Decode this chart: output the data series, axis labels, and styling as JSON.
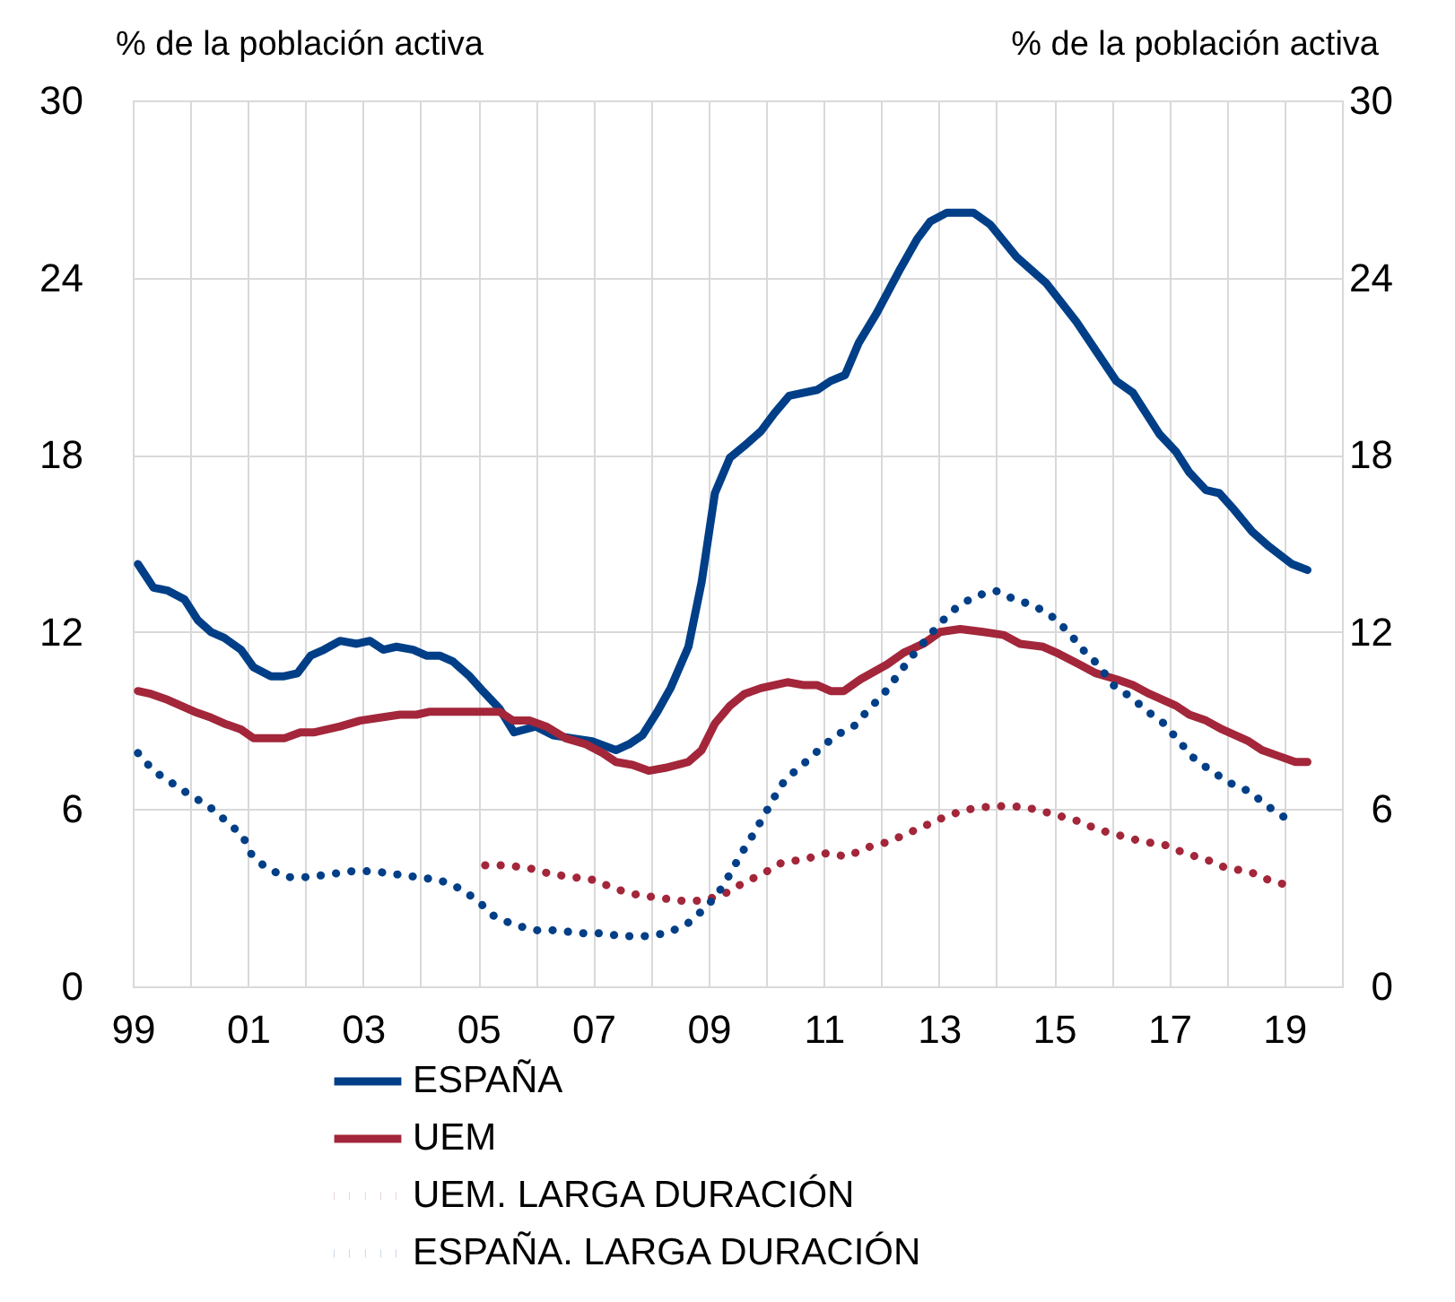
{
  "chart_data": {
    "type": "line",
    "ylabel": "% de la población activa",
    "y2label": "% de la población activa",
    "xlim": [
      1999,
      2020
    ],
    "xticks": [
      {
        "value": 1999,
        "label": "99"
      },
      {
        "value": 2000,
        "label": null
      },
      {
        "value": 2001,
        "label": "01"
      },
      {
        "value": 2002,
        "label": null
      },
      {
        "value": 2003,
        "label": "03"
      },
      {
        "value": 2004,
        "label": null
      },
      {
        "value": 2005,
        "label": "05"
      },
      {
        "value": 2006,
        "label": null
      },
      {
        "value": 2007,
        "label": "07"
      },
      {
        "value": 2008,
        "label": null
      },
      {
        "value": 2009,
        "label": "09"
      },
      {
        "value": 2010,
        "label": null
      },
      {
        "value": 2011,
        "label": "11"
      },
      {
        "value": 2012,
        "label": null
      },
      {
        "value": 2013,
        "label": "13"
      },
      {
        "value": 2014,
        "label": null
      },
      {
        "value": 2015,
        "label": "15"
      },
      {
        "value": 2016,
        "label": null
      },
      {
        "value": 2017,
        "label": "17"
      },
      {
        "value": 2018,
        "label": null
      },
      {
        "value": 2019,
        "label": "19"
      },
      {
        "value": 2020,
        "label": null
      }
    ],
    "ylim": [
      0,
      30
    ],
    "yticks": [
      0,
      6,
      12,
      18,
      24,
      30
    ],
    "y2lim": [
      0,
      30
    ],
    "y2ticks": [
      0,
      6,
      12,
      18,
      24,
      30
    ],
    "grid": true,
    "legend": "bottom",
    "series": [
      {
        "name": "ESPAÑA",
        "color": "#003f87",
        "line_style": "solid",
        "x": [
          1999.09,
          1999.36,
          1999.61,
          1999.9,
          2000.13,
          2000.36,
          2000.59,
          2000.88,
          2001.1,
          2001.4,
          2001.63,
          2001.86,
          2002.09,
          2002.32,
          2002.6,
          2002.89,
          2003.12,
          2003.35,
          2003.58,
          2003.87,
          2004.1,
          2004.33,
          2004.56,
          2004.85,
          2005.08,
          2005.37,
          2005.62,
          2006.0,
          2006.3,
          2006.64,
          2006.98,
          2007.39,
          2007.62,
          2007.85,
          2008.11,
          2008.34,
          2008.65,
          2008.88,
          2009.11,
          2009.37,
          2009.62,
          2009.91,
          2010.14,
          2010.4,
          2010.89,
          2011.12,
          2011.37,
          2011.61,
          2011.92,
          2012.33,
          2012.62,
          2012.85,
          2013.14,
          2013.6,
          2013.89,
          2014.35,
          2014.87,
          2015.39,
          2016.08,
          2016.37,
          2016.83,
          2017.12,
          2017.35,
          2017.64,
          2017.87,
          2018.1,
          2018.44,
          2018.73,
          2019.13,
          2019.4
        ],
        "values": [
          14.3,
          13.5,
          13.4,
          13.1,
          12.4,
          12.0,
          11.8,
          11.4,
          10.8,
          10.5,
          10.5,
          10.6,
          11.2,
          11.4,
          11.7,
          11.6,
          11.7,
          11.4,
          11.5,
          11.4,
          11.2,
          11.2,
          11.0,
          10.5,
          10.0,
          9.4,
          8.6,
          8.8,
          8.5,
          8.4,
          8.3,
          8.0,
          8.2,
          8.5,
          9.3,
          10.1,
          11.5,
          13.7,
          16.7,
          17.9,
          18.3,
          18.8,
          19.4,
          20.0,
          20.2,
          20.5,
          20.7,
          21.8,
          22.8,
          24.3,
          25.3,
          25.9,
          26.2,
          26.2,
          25.8,
          24.7,
          23.8,
          22.5,
          20.5,
          20.1,
          18.7,
          18.1,
          17.4,
          16.8,
          16.7,
          16.2,
          15.4,
          14.9,
          14.3,
          14.1
        ]
      },
      {
        "name": "UEM",
        "color": "#a3263a",
        "line_style": "solid",
        "x": [
          1999.09,
          1999.32,
          1999.61,
          2000.07,
          2000.36,
          2000.59,
          2000.88,
          2001.1,
          2001.63,
          2001.91,
          2002.14,
          2002.6,
          2002.95,
          2003.3,
          2003.64,
          2003.93,
          2004.16,
          2005.37,
          2005.6,
          2005.89,
          2006.18,
          2006.52,
          2006.87,
          2007.16,
          2007.39,
          2007.68,
          2007.96,
          2008.25,
          2008.65,
          2008.88,
          2009.11,
          2009.37,
          2009.62,
          2009.91,
          2010.37,
          2010.66,
          2010.89,
          2011.12,
          2011.35,
          2011.64,
          2012.1,
          2012.39,
          2012.73,
          2013.02,
          2013.37,
          2013.77,
          2014.12,
          2014.41,
          2014.81,
          2015.04,
          2015.44,
          2015.73,
          2016.08,
          2016.37,
          2016.66,
          2017.12,
          2017.35,
          2017.64,
          2017.92,
          2018.38,
          2018.61,
          2018.9,
          2019.19,
          2019.4
        ],
        "values": [
          10.0,
          9.9,
          9.7,
          9.3,
          9.1,
          8.9,
          8.7,
          8.4,
          8.4,
          8.6,
          8.6,
          8.8,
          9.0,
          9.1,
          9.2,
          9.2,
          9.3,
          9.3,
          9.0,
          9.0,
          8.8,
          8.4,
          8.2,
          7.9,
          7.6,
          7.5,
          7.3,
          7.4,
          7.6,
          8.0,
          8.9,
          9.5,
          9.9,
          10.1,
          10.3,
          10.2,
          10.2,
          10.0,
          10.0,
          10.4,
          10.9,
          11.3,
          11.6,
          12.0,
          12.1,
          12.0,
          11.9,
          11.6,
          11.5,
          11.3,
          10.9,
          10.6,
          10.4,
          10.2,
          9.9,
          9.5,
          9.2,
          9.0,
          8.7,
          8.3,
          8.0,
          7.8,
          7.6,
          7.6
        ]
      },
      {
        "name": "UEM. LARGA DURACIÓN",
        "color": "#a3263a",
        "line_style": "dotted",
        "x": [
          2005.12,
          2005.49,
          2005.89,
          2006.27,
          2006.64,
          2007.02,
          2007.38,
          2007.76,
          2008.14,
          2008.51,
          2008.88,
          2009.25,
          2009.6,
          2009.93,
          2010.28,
          2010.66,
          2011.03,
          2011.41,
          2011.75,
          2012.13,
          2012.48,
          2012.83,
          2013.17,
          2013.54,
          2013.92,
          2014.3,
          2014.67,
          2015.04,
          2015.41,
          2015.78,
          2016.16,
          2016.54,
          2016.91,
          2017.28,
          2017.64,
          2018.0,
          2018.38,
          2018.73,
          2019.1
        ],
        "values": [
          4.1,
          4.1,
          4.0,
          3.8,
          3.7,
          3.6,
          3.3,
          3.1,
          3.0,
          2.9,
          2.9,
          3.1,
          3.5,
          3.8,
          4.2,
          4.3,
          4.5,
          4.4,
          4.7,
          4.9,
          5.2,
          5.5,
          5.8,
          6.0,
          6.1,
          6.1,
          6.0,
          5.8,
          5.6,
          5.3,
          5.1,
          4.9,
          4.8,
          4.5,
          4.3,
          4.0,
          3.9,
          3.6,
          3.4
        ]
      },
      {
        "name": "ESPAÑA. LARGA DURACIÓN",
        "color": "#003f87",
        "line_style": "dotted",
        "x": [
          1999.09,
          1999.36,
          1999.67,
          1999.98,
          2000.32,
          2000.62,
          2000.91,
          2001.05,
          2001.32,
          2001.68,
          2002.05,
          2002.43,
          2002.81,
          2003.18,
          2003.56,
          2003.95,
          2004.33,
          2004.7,
          2004.99,
          2005.26,
          2005.6,
          2005.98,
          2006.37,
          2006.75,
          2007.12,
          2007.5,
          2007.88,
          2008.27,
          2008.62,
          2008.91,
          2009.15,
          2009.37,
          2009.57,
          2009.76,
          2009.94,
          2010.14,
          2010.33,
          2010.63,
          2010.91,
          2011.21,
          2011.52,
          2011.79,
          2012.04,
          2012.27,
          2012.5,
          2012.76,
          2013.02,
          2013.29,
          2013.61,
          2013.98,
          2014.32,
          2014.65,
          2014.98,
          2015.25,
          2015.5,
          2015.76,
          2016.03,
          2016.33,
          2016.63,
          2016.91,
          2017.17,
          2017.44,
          2017.73,
          2018.04,
          2018.39,
          2018.71,
          2019.02
        ],
        "values": [
          7.9,
          7.3,
          6.9,
          6.5,
          6.1,
          5.6,
          5.1,
          4.5,
          4.0,
          3.7,
          3.7,
          3.8,
          3.9,
          3.9,
          3.8,
          3.7,
          3.6,
          3.3,
          2.9,
          2.4,
          2.1,
          1.9,
          1.9,
          1.8,
          1.8,
          1.7,
          1.7,
          1.8,
          2.1,
          2.6,
          3.1,
          3.8,
          4.5,
          5.1,
          5.7,
          6.4,
          7.0,
          7.5,
          8.0,
          8.5,
          8.8,
          9.4,
          9.9,
          10.5,
          11.1,
          11.7,
          12.3,
          12.8,
          13.2,
          13.4,
          13.1,
          12.9,
          12.5,
          12.0,
          11.4,
          10.9,
          10.2,
          9.8,
          9.3,
          8.9,
          8.3,
          7.7,
          7.3,
          6.9,
          6.6,
          6.1,
          5.7
        ]
      }
    ]
  }
}
